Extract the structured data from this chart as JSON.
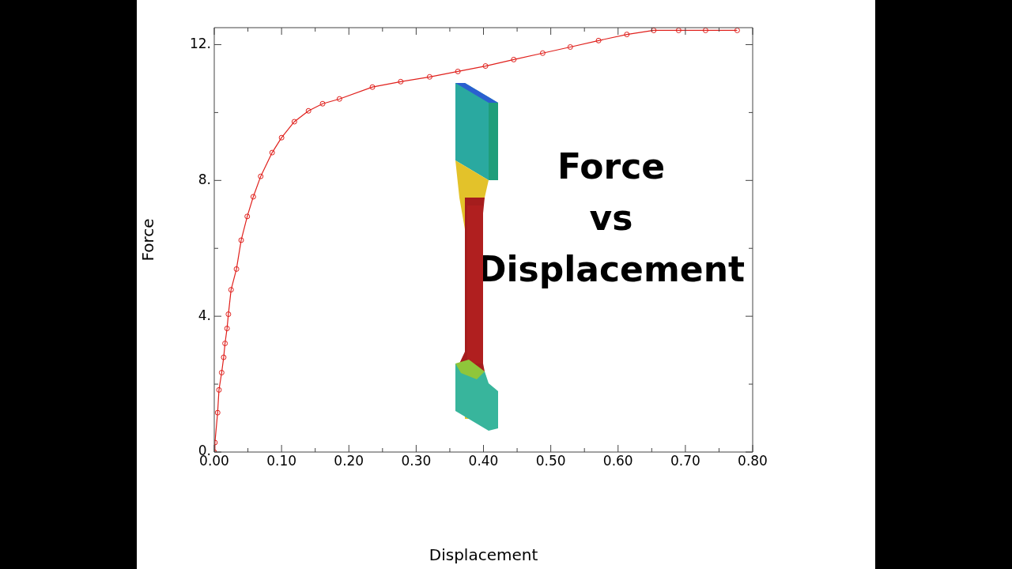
{
  "chart_data": {
    "type": "line",
    "title": "Force vs Displacement",
    "xlabel": "Displacement",
    "ylabel": "Force",
    "series": [
      {
        "color": "#e0201c",
        "x": [
          0,
          0.001,
          0.005,
          0.007,
          0.011,
          0.014,
          0.016,
          0.019,
          0.021,
          0.025,
          0.033,
          0.04,
          0.049,
          0.058,
          0.069,
          0.086,
          0.1,
          0.119,
          0.14,
          0.161,
          0.186,
          0.235,
          0.277,
          0.32,
          0.362,
          0.403,
          0.445,
          0.488,
          0.529,
          0.571,
          0.613,
          0.653,
          0.69,
          0.73,
          0.777
        ],
        "values": [
          0,
          0.28,
          1.16,
          1.83,
          2.34,
          2.79,
          3.2,
          3.64,
          4.06,
          4.78,
          5.39,
          6.24,
          6.94,
          7.52,
          8.12,
          8.82,
          9.26,
          9.73,
          10.05,
          10.26,
          10.4,
          10.75,
          10.91,
          11.05,
          11.21,
          11.37,
          11.56,
          11.75,
          11.93,
          12.12,
          12.3,
          12.42,
          12.42,
          12.42,
          12.42
        ]
      }
    ],
    "xlim": [
      0,
      0.8
    ],
    "xticks": [
      {
        "value": 0,
        "label": "0.00"
      },
      {
        "value": 0.05,
        "label": null
      },
      {
        "value": 0.1,
        "label": "0.10"
      },
      {
        "value": 0.15,
        "label": null
      },
      {
        "value": 0.2,
        "label": "0.20"
      },
      {
        "value": 0.25,
        "label": null
      },
      {
        "value": 0.3,
        "label": "0.30"
      },
      {
        "value": 0.35,
        "label": null
      },
      {
        "value": 0.4,
        "label": "0.40"
      },
      {
        "value": 0.45,
        "label": null
      },
      {
        "value": 0.5,
        "label": "0.50"
      },
      {
        "value": 0.55,
        "label": null
      },
      {
        "value": 0.6,
        "label": "0.60"
      },
      {
        "value": 0.65,
        "label": null
      },
      {
        "value": 0.7,
        "label": "0.70"
      },
      {
        "value": 0.75,
        "label": null
      },
      {
        "value": 0.8,
        "label": "0.80"
      }
    ],
    "ylim": [
      0,
      12.5
    ],
    "yticks": [
      {
        "value": 0,
        "label": "0."
      },
      {
        "value": 2,
        "label": null
      },
      {
        "value": 4,
        "label": "4."
      },
      {
        "value": 6,
        "label": null
      },
      {
        "value": 8,
        "label": "8."
      },
      {
        "value": 10,
        "label": null
      },
      {
        "value": 12,
        "label": "12."
      }
    ],
    "grid": false,
    "legend": false,
    "marker": "circle",
    "line_style": "solid"
  }
}
